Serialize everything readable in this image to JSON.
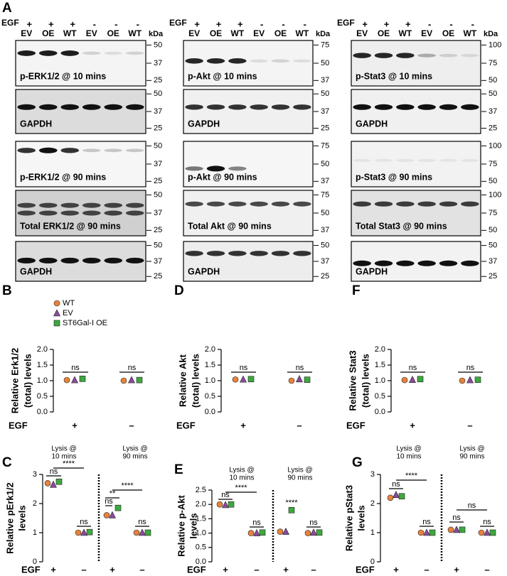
{
  "blots": {
    "label": "A",
    "egf_label": "EGF",
    "kda_label": "kDa",
    "egf": [
      "+",
      "+",
      "+",
      "-",
      "-",
      "-"
    ],
    "lanes": [
      "EV",
      "OE",
      "WT",
      "EV",
      "OE",
      "WT"
    ],
    "columns": [
      {
        "panels": [
          {
            "label": "p-ERK1/2 @ 10 mins",
            "markers": [
              "50",
              "37",
              "25"
            ]
          },
          {
            "label": "GAPDH",
            "markers": [
              "50",
              "37",
              "25"
            ]
          },
          {
            "label": "p-ERK1/2 @ 90 mins",
            "markers": [
              "50",
              "37",
              "25"
            ]
          },
          {
            "label": "Total ERK1/2 @ 90 mins",
            "markers": [
              "50",
              "37",
              "25"
            ]
          },
          {
            "label": "GAPDH",
            "markers": [
              "50",
              "37",
              "25"
            ]
          }
        ]
      },
      {
        "panels": [
          {
            "label": "p-Akt @ 10 mins",
            "markers": [
              "75",
              "50",
              "37"
            ]
          },
          {
            "label": "GAPDH",
            "markers": [
              "50",
              "37",
              "25"
            ]
          },
          {
            "label": "p-Akt @ 90 mins",
            "markers": [
              "75",
              "50",
              "37"
            ]
          },
          {
            "label": "Total Akt @ 90 mins",
            "markers": [
              "75",
              "50",
              "37"
            ]
          },
          {
            "label": "GAPDH",
            "markers": [
              "50",
              "37",
              "25"
            ]
          }
        ]
      },
      {
        "panels": [
          {
            "label": "p-Stat3 @ 10 mins",
            "markers": [
              "100",
              "75",
              "50"
            ]
          },
          {
            "label": "GAPDH",
            "markers": [
              "50",
              "37",
              "25"
            ]
          },
          {
            "label": "p-Stat3 @ 90 mins",
            "markers": [
              "100",
              "75",
              "50"
            ]
          },
          {
            "label": "Total Stat3 @ 90 mins",
            "markers": [
              "100",
              "75",
              "50"
            ]
          },
          {
            "label": "GAPDH",
            "markers": [
              "50",
              "37",
              "25"
            ]
          }
        ]
      }
    ]
  },
  "chart_data": [
    {
      "type": "dot",
      "panel": "B",
      "ylabel": [
        "Relative Erk1/2",
        "(total) levels"
      ],
      "x_label": "EGF",
      "categories": [
        "+",
        "–"
      ],
      "ylim": [
        0,
        2
      ],
      "yticks": [
        {
          "value": 0,
          "label": "0.0"
        },
        0.5,
        {
          "value": 1,
          "label": "1.0"
        },
        1.5,
        {
          "value": 2,
          "label": "2.0"
        }
      ],
      "legend": "upper left",
      "series": [
        {
          "name": "WT",
          "color": "#e8823a",
          "marker": "circle",
          "values": [
            1.02,
            1.0
          ]
        },
        {
          "name": "EV",
          "color": "#8b4a9c",
          "marker": "triangle",
          "values": [
            1.02,
            1.02
          ]
        },
        {
          "name": "ST6Gal-I OE",
          "color": "#3ea83e",
          "marker": "square",
          "values": [
            1.06,
            1.02
          ]
        }
      ],
      "annotations": [
        "ns",
        "ns"
      ]
    },
    {
      "type": "dot",
      "panel": "D",
      "ylabel": [
        "Relative Akt",
        "(total) levels"
      ],
      "x_label": "EGF",
      "categories": [
        "+",
        "–"
      ],
      "ylim": [
        0,
        2
      ],
      "yticks": [
        {
          "value": 0,
          "label": "0.0"
        },
        0.5,
        {
          "value": 1,
          "label": "1.0"
        },
        1.5,
        {
          "value": 2,
          "label": "2.0"
        }
      ],
      "series": [
        {
          "color": "#e8823a",
          "marker": "circle",
          "values": [
            1.04,
            1.0
          ]
        },
        {
          "color": "#8b4a9c",
          "marker": "triangle",
          "values": [
            1.04,
            1.05
          ]
        },
        {
          "color": "#3ea83e",
          "marker": "square",
          "values": [
            1.05,
            1.03
          ]
        }
      ],
      "annotations": [
        "ns",
        "ns"
      ]
    },
    {
      "type": "dot",
      "panel": "F",
      "ylabel": [
        "Relative Stat3",
        "(total) levels"
      ],
      "x_label": "EGF",
      "categories": [
        "+",
        "–"
      ],
      "ylim": [
        0,
        2
      ],
      "yticks": [
        {
          "value": 0,
          "label": "0.0"
        },
        0.5,
        {
          "value": 1,
          "label": "1.0"
        },
        1.5,
        {
          "value": 2,
          "label": "2.0"
        }
      ],
      "series": [
        {
          "color": "#e8823a",
          "marker": "circle",
          "values": [
            1.02,
            1.0
          ]
        },
        {
          "color": "#8b4a9c",
          "marker": "triangle",
          "values": [
            1.03,
            1.02
          ]
        },
        {
          "color": "#3ea83e",
          "marker": "square",
          "values": [
            1.05,
            1.03
          ]
        }
      ],
      "annotations": [
        "ns",
        "ns"
      ]
    },
    {
      "type": "dot",
      "panel": "C",
      "ylabel": [
        "Relative pErk1/2",
        "levels"
      ],
      "x_label": "EGF",
      "categories": [
        "+",
        "–",
        "+",
        "–"
      ],
      "group_labels": [
        [
          "Lysis @",
          "10 mins"
        ],
        [
          "Lysis @",
          "90 mins"
        ]
      ],
      "ylim": [
        0,
        3
      ],
      "yticks": [
        0,
        1,
        2,
        3
      ],
      "series": [
        {
          "color": "#e8823a",
          "marker": "circle",
          "values": [
            2.7,
            1.0,
            1.6,
            1.0
          ]
        },
        {
          "color": "#8b4a9c",
          "marker": "triangle",
          "values": [
            2.65,
            1.0,
            1.6,
            1.0
          ]
        },
        {
          "color": "#3ea83e",
          "marker": "square",
          "values": [
            2.75,
            1.02,
            1.85,
            1.0
          ]
        }
      ],
      "annotations": [
        "ns",
        "****",
        "ns",
        "ns",
        "**",
        "****",
        "ns"
      ]
    },
    {
      "type": "dot",
      "panel": "E",
      "ylabel": [
        "Relative p-Akt",
        "levels"
      ],
      "x_label": "EGF",
      "categories": [
        "+",
        "–",
        "+",
        "–"
      ],
      "group_labels": [
        [
          "Lysis @",
          "10 mins"
        ],
        [
          "Lysis @",
          "90 mins"
        ]
      ],
      "ylim": [
        0,
        2.5
      ],
      "yticks": [
        {
          "value": 0,
          "label": "0.0"
        },
        0.5,
        {
          "value": 1,
          "label": "1.0"
        },
        1.5,
        {
          "value": 2,
          "label": "2.0"
        },
        2.5
      ],
      "series": [
        {
          "color": "#e8823a",
          "marker": "circle",
          "values": [
            2.0,
            1.0,
            1.05,
            1.0
          ]
        },
        {
          "color": "#8b4a9c",
          "marker": "triangle",
          "values": [
            1.98,
            1.0,
            1.05,
            1.02
          ]
        },
        {
          "color": "#3ea83e",
          "marker": "square",
          "values": [
            2.0,
            1.02,
            1.8,
            1.02
          ]
        }
      ],
      "annotations": [
        "ns",
        "****",
        "ns",
        "****",
        "ns"
      ]
    },
    {
      "type": "dot",
      "panel": "G",
      "ylabel": [
        "Relative pStat3",
        "levels"
      ],
      "x_label": "EGF",
      "categories": [
        "+",
        "–",
        "+",
        "–"
      ],
      "group_labels": [
        [
          "Lysis @",
          "10 mins"
        ],
        [
          "Lysis @",
          "90 mins"
        ]
      ],
      "ylim": [
        0,
        3
      ],
      "yticks": [
        0,
        1,
        2,
        3
      ],
      "series": [
        {
          "color": "#e8823a",
          "marker": "circle",
          "values": [
            2.2,
            1.0,
            1.1,
            1.0
          ]
        },
        {
          "color": "#8b4a9c",
          "marker": "triangle",
          "values": [
            2.3,
            1.0,
            1.1,
            1.0
          ]
        },
        {
          "color": "#3ea83e",
          "marker": "square",
          "values": [
            2.25,
            1.0,
            1.1,
            1.0
          ]
        }
      ],
      "annotations": [
        "ns",
        "****",
        "ns",
        "ns",
        "ns",
        "ns"
      ]
    }
  ]
}
